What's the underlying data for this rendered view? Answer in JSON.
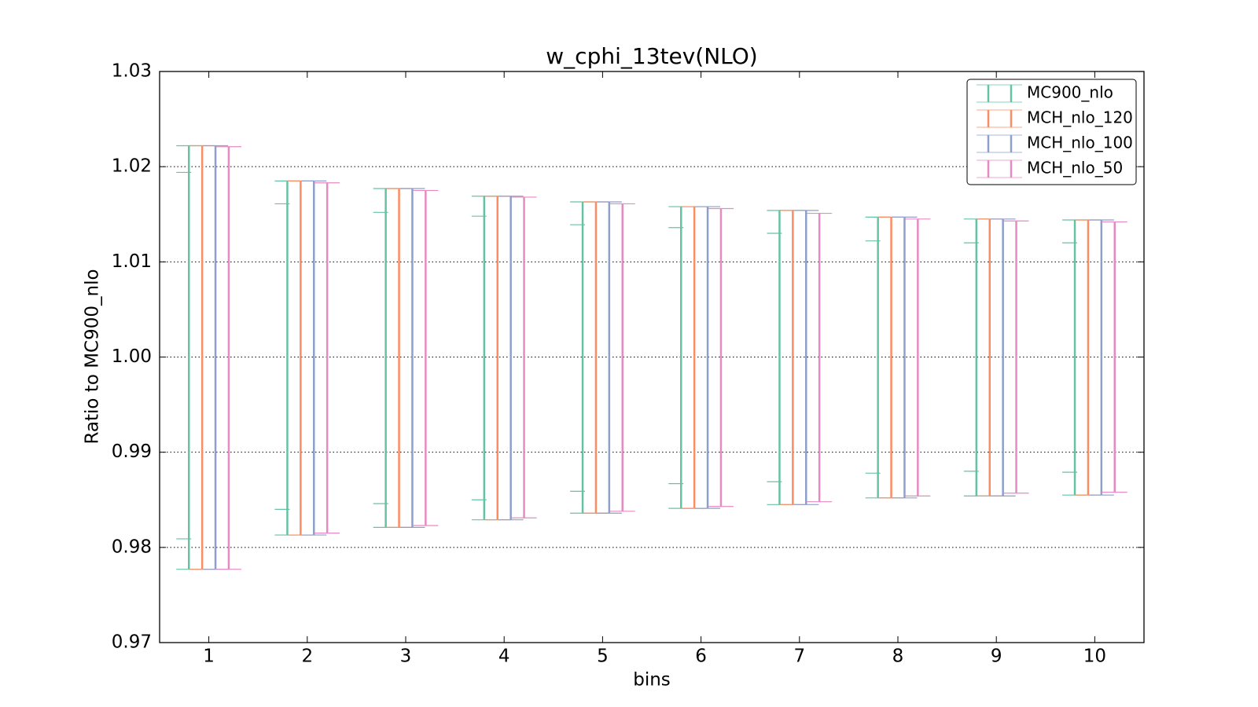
{
  "chart_data": {
    "type": "errorbar",
    "title": "w_cphi_13tev(NLO)",
    "xlabel": "bins",
    "ylabel": "Ratio to MC900_nlo",
    "x": [
      1,
      2,
      3,
      4,
      5,
      6,
      7,
      8,
      9,
      10
    ],
    "xlim": [
      0.5,
      10.5
    ],
    "xticks": [
      1,
      2,
      3,
      4,
      5,
      6,
      7,
      8,
      9,
      10
    ],
    "ylim": [
      0.97,
      1.03
    ],
    "yticks": [
      0.97,
      0.98,
      0.99,
      {
        "value": 1,
        "label": "1.00"
      },
      1.01,
      1.02,
      1.03
    ],
    "grid": true,
    "legend": "upper right",
    "series": [
      {
        "name": "MC900_nlo",
        "color": "#66c2a5",
        "lower": [
          0.9777,
          0.9813,
          0.9821,
          0.9829,
          0.9836,
          0.9841,
          0.9845,
          0.9852,
          0.9854,
          0.9855
        ],
        "upper": [
          1.0222,
          1.0185,
          1.0177,
          1.0169,
          1.0163,
          1.0158,
          1.0154,
          1.0147,
          1.0145,
          1.0144
        ],
        "inner_lower": [
          0.9809,
          0.984,
          0.9846,
          0.985,
          0.9859,
          0.9867,
          0.9869,
          0.9878,
          0.988,
          0.9879
        ],
        "inner_upper": [
          1.0194,
          1.0161,
          1.0152,
          1.0148,
          1.0139,
          1.0136,
          1.013,
          1.0122,
          1.012,
          1.012
        ]
      },
      {
        "name": "MCH_nlo_120",
        "color": "#fc8d62",
        "lower": [
          0.9777,
          0.9813,
          0.9821,
          0.9829,
          0.9836,
          0.9841,
          0.9845,
          0.9852,
          0.9854,
          0.9855
        ],
        "upper": [
          1.0222,
          1.0185,
          1.0177,
          1.0169,
          1.0163,
          1.0158,
          1.0154,
          1.0147,
          1.0145,
          1.0144
        ]
      },
      {
        "name": "MCH_nlo_100",
        "color": "#8da0cb",
        "lower": [
          0.9777,
          0.9813,
          0.9821,
          0.9829,
          0.9836,
          0.9841,
          0.9845,
          0.9852,
          0.9854,
          0.9855
        ],
        "upper": [
          1.0222,
          1.0185,
          1.0177,
          1.0169,
          1.0163,
          1.0158,
          1.0154,
          1.0147,
          1.0145,
          1.0144
        ]
      },
      {
        "name": "MCH_nlo_50",
        "color": "#e78ac3",
        "lower": [
          0.9777,
          0.9815,
          0.9823,
          0.9831,
          0.9838,
          0.9843,
          0.9848,
          0.9854,
          0.9857,
          0.9858
        ],
        "upper": [
          1.0221,
          1.0183,
          1.0175,
          1.0168,
          1.0161,
          1.0156,
          1.0151,
          1.0145,
          1.0143,
          1.0142
        ]
      }
    ]
  }
}
